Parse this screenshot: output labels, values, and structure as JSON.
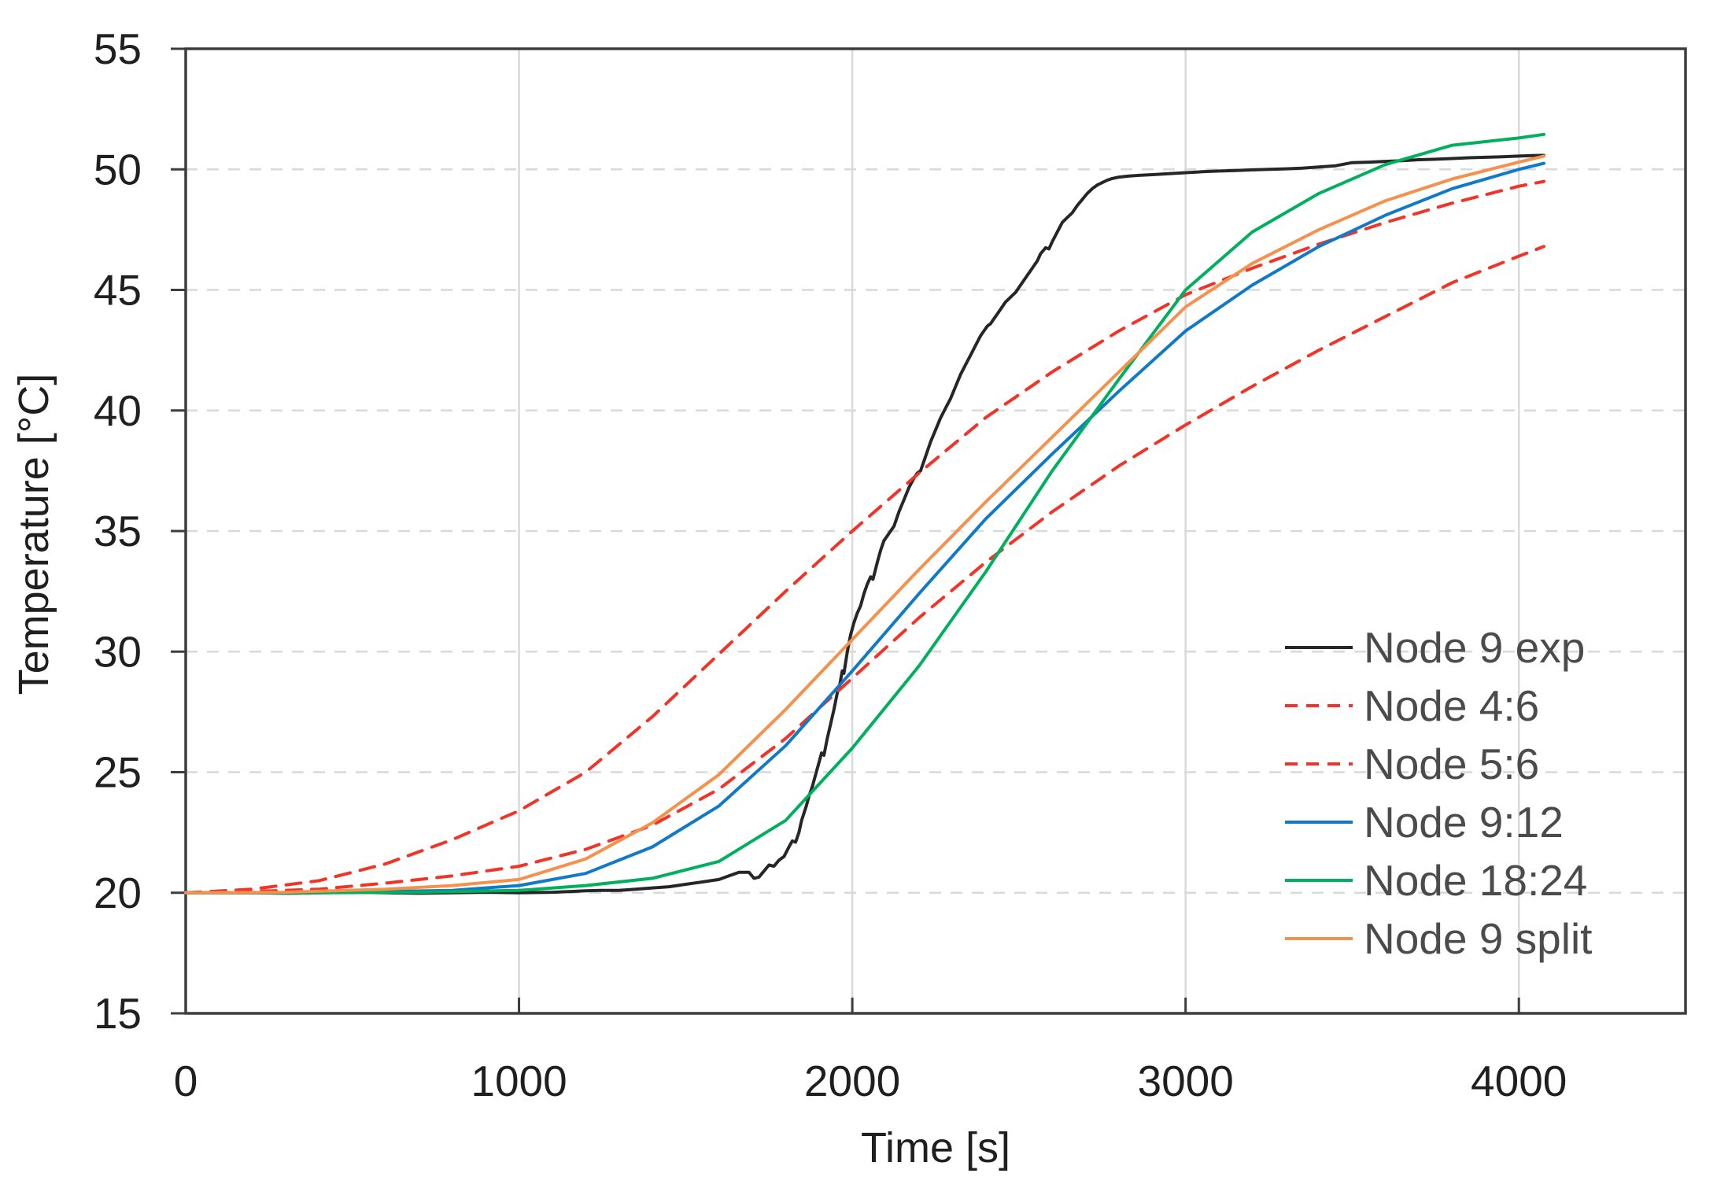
{
  "chart_data": {
    "type": "line",
    "title": "",
    "xlabel": "Time [s]",
    "ylabel": "Temperature [°C]",
    "xlim": [
      0,
      4500
    ],
    "ylim": [
      15,
      55
    ],
    "x_ticks": [
      0,
      1000,
      2000,
      3000,
      4000
    ],
    "y_ticks": [
      15,
      20,
      25,
      30,
      35,
      40,
      45,
      50,
      55
    ],
    "x_gridlines": [
      1000,
      2000,
      3000,
      4000
    ],
    "y_gridlines": [
      20,
      25,
      30,
      35,
      40,
      45,
      50
    ],
    "grid": "on",
    "legend_position": "inside-right",
    "legend_text_color": "#4B4B4B",
    "series": [
      {
        "name": "Node 9 exp",
        "color": "#262626",
        "style": "solid",
        "points": [
          [
            0,
            20
          ],
          [
            100,
            20
          ],
          [
            200,
            20
          ],
          [
            300,
            19.98
          ],
          [
            400,
            20
          ],
          [
            500,
            20.02
          ],
          [
            600,
            20
          ],
          [
            700,
            19.98
          ],
          [
            800,
            20
          ],
          [
            900,
            20.02
          ],
          [
            1000,
            20
          ],
          [
            1100,
            20.02
          ],
          [
            1150,
            20.05
          ],
          [
            1200,
            20.08
          ],
          [
            1250,
            20.1
          ],
          [
            1300,
            20.1
          ],
          [
            1350,
            20.15
          ],
          [
            1400,
            20.2
          ],
          [
            1450,
            20.25
          ],
          [
            1500,
            20.35
          ],
          [
            1550,
            20.45
          ],
          [
            1600,
            20.55
          ],
          [
            1630,
            20.7
          ],
          [
            1660,
            20.85
          ],
          [
            1690,
            20.85
          ],
          [
            1705,
            20.6
          ],
          [
            1720,
            20.65
          ],
          [
            1735,
            20.9
          ],
          [
            1750,
            21.15
          ],
          [
            1765,
            21.1
          ],
          [
            1780,
            21.35
          ],
          [
            1795,
            21.5
          ],
          [
            1810,
            21.9
          ],
          [
            1820,
            22.15
          ],
          [
            1830,
            22.1
          ],
          [
            1840,
            22.5
          ],
          [
            1848,
            23
          ],
          [
            1855,
            23.3
          ],
          [
            1862,
            23.6
          ],
          [
            1870,
            24
          ],
          [
            1880,
            24.4
          ],
          [
            1890,
            24.9
          ],
          [
            1900,
            25.4
          ],
          [
            1908,
            25.8
          ],
          [
            1915,
            25.7
          ],
          [
            1925,
            26.4
          ],
          [
            1935,
            27
          ],
          [
            1945,
            27.6
          ],
          [
            1955,
            28.3
          ],
          [
            1962,
            28.6
          ],
          [
            1970,
            29.2
          ],
          [
            1975,
            29.1
          ],
          [
            1985,
            30
          ],
          [
            1995,
            30.7
          ],
          [
            2005,
            31.2
          ],
          [
            2015,
            31.6
          ],
          [
            2025,
            31.9
          ],
          [
            2035,
            32.4
          ],
          [
            2045,
            32.8
          ],
          [
            2055,
            33.1
          ],
          [
            2062,
            33
          ],
          [
            2075,
            33.7
          ],
          [
            2085,
            34.2
          ],
          [
            2095,
            34.6
          ],
          [
            2105,
            34.8
          ],
          [
            2115,
            35
          ],
          [
            2125,
            35.2
          ],
          [
            2140,
            35.8
          ],
          [
            2155,
            36.3
          ],
          [
            2170,
            36.8
          ],
          [
            2185,
            37.2
          ],
          [
            2195,
            37.4
          ],
          [
            2205,
            37.5
          ],
          [
            2220,
            38.1
          ],
          [
            2235,
            38.7
          ],
          [
            2250,
            39.2
          ],
          [
            2265,
            39.7
          ],
          [
            2280,
            40.1
          ],
          [
            2295,
            40.5
          ],
          [
            2310,
            41
          ],
          [
            2325,
            41.5
          ],
          [
            2340,
            41.9
          ],
          [
            2355,
            42.3
          ],
          [
            2370,
            42.7
          ],
          [
            2385,
            43.1
          ],
          [
            2395,
            43.3
          ],
          [
            2405,
            43.5
          ],
          [
            2415,
            43.6
          ],
          [
            2425,
            43.8
          ],
          [
            2435,
            44
          ],
          [
            2445,
            44.2
          ],
          [
            2460,
            44.5
          ],
          [
            2475,
            44.7
          ],
          [
            2490,
            44.9
          ],
          [
            2500,
            45.1
          ],
          [
            2515,
            45.4
          ],
          [
            2530,
            45.7
          ],
          [
            2545,
            46
          ],
          [
            2555,
            46.2
          ],
          [
            2565,
            46.5
          ],
          [
            2580,
            46.75
          ],
          [
            2590,
            46.7
          ],
          [
            2600,
            47
          ],
          [
            2615,
            47.4
          ],
          [
            2630,
            47.8
          ],
          [
            2645,
            48
          ],
          [
            2660,
            48.2
          ],
          [
            2675,
            48.5
          ],
          [
            2690,
            48.75
          ],
          [
            2705,
            49
          ],
          [
            2720,
            49.2
          ],
          [
            2735,
            49.35
          ],
          [
            2750,
            49.45
          ],
          [
            2765,
            49.55
          ],
          [
            2780,
            49.62
          ],
          [
            2800,
            49.68
          ],
          [
            2830,
            49.72
          ],
          [
            2860,
            49.75
          ],
          [
            2900,
            49.78
          ],
          [
            2950,
            49.82
          ],
          [
            3000,
            49.86
          ],
          [
            3050,
            49.9
          ],
          [
            3100,
            49.93
          ],
          [
            3150,
            49.95
          ],
          [
            3200,
            49.98
          ],
          [
            3250,
            50
          ],
          [
            3300,
            50.02
          ],
          [
            3350,
            50.05
          ],
          [
            3400,
            50.1
          ],
          [
            3450,
            50.15
          ],
          [
            3500,
            50.28
          ],
          [
            3550,
            50.3
          ],
          [
            3600,
            50.33
          ],
          [
            3650,
            50.36
          ],
          [
            3700,
            50.4
          ],
          [
            3750,
            50.42
          ],
          [
            3800,
            50.45
          ],
          [
            3850,
            50.48
          ],
          [
            3900,
            50.5
          ],
          [
            3950,
            50.52
          ],
          [
            4000,
            50.55
          ],
          [
            4040,
            50.57
          ],
          [
            4075,
            50.58
          ]
        ]
      },
      {
        "name": "Node 4:6",
        "color": "#F23327",
        "style": "dashed",
        "points": [
          [
            0,
            20
          ],
          [
            200,
            20.15
          ],
          [
            400,
            20.5
          ],
          [
            600,
            21.2
          ],
          [
            800,
            22.2
          ],
          [
            1000,
            23.4
          ],
          [
            1200,
            25
          ],
          [
            1400,
            27.3
          ],
          [
            1600,
            29.9
          ],
          [
            1800,
            32.5
          ],
          [
            2000,
            35
          ],
          [
            2200,
            37.4
          ],
          [
            2400,
            39.7
          ],
          [
            2600,
            41.6
          ],
          [
            2800,
            43.3
          ],
          [
            3000,
            44.8
          ],
          [
            3200,
            45.9
          ],
          [
            3400,
            46.9
          ],
          [
            3600,
            47.8
          ],
          [
            3800,
            48.6
          ],
          [
            4000,
            49.3
          ],
          [
            4075,
            49.5
          ]
        ]
      },
      {
        "name": "Node 5:6",
        "color": "#F23327",
        "style": "dashed",
        "points": [
          [
            0,
            20
          ],
          [
            200,
            20.05
          ],
          [
            400,
            20.15
          ],
          [
            600,
            20.4
          ],
          [
            800,
            20.7
          ],
          [
            1000,
            21.1
          ],
          [
            1200,
            21.8
          ],
          [
            1400,
            22.8
          ],
          [
            1600,
            24.3
          ],
          [
            1800,
            26.4
          ],
          [
            2000,
            28.9
          ],
          [
            2200,
            31.4
          ],
          [
            2400,
            33.7
          ],
          [
            2600,
            35.8
          ],
          [
            2800,
            37.7
          ],
          [
            3000,
            39.4
          ],
          [
            3200,
            41
          ],
          [
            3400,
            42.5
          ],
          [
            3600,
            43.9
          ],
          [
            3800,
            45.3
          ],
          [
            4000,
            46.4
          ],
          [
            4075,
            46.8
          ]
        ]
      },
      {
        "name": "Node 9:12",
        "color": "#1079C8",
        "style": "solid",
        "points": [
          [
            0,
            20
          ],
          [
            300,
            20
          ],
          [
            600,
            20.05
          ],
          [
            800,
            20.1
          ],
          [
            1000,
            20.3
          ],
          [
            1200,
            20.8
          ],
          [
            1400,
            21.9
          ],
          [
            1600,
            23.6
          ],
          [
            1800,
            26.1
          ],
          [
            2000,
            29.2
          ],
          [
            2200,
            32.4
          ],
          [
            2400,
            35.5
          ],
          [
            2600,
            38.2
          ],
          [
            2800,
            40.8
          ],
          [
            3000,
            43.3
          ],
          [
            3200,
            45.2
          ],
          [
            3400,
            46.8
          ],
          [
            3600,
            48.1
          ],
          [
            3800,
            49.2
          ],
          [
            4000,
            50
          ],
          [
            4075,
            50.25
          ]
        ]
      },
      {
        "name": "Node 18:24",
        "color": "#00B05E",
        "style": "solid",
        "points": [
          [
            0,
            20
          ],
          [
            400,
            20
          ],
          [
            700,
            20.02
          ],
          [
            1000,
            20.1
          ],
          [
            1200,
            20.3
          ],
          [
            1400,
            20.6
          ],
          [
            1600,
            21.3
          ],
          [
            1800,
            23
          ],
          [
            2000,
            26
          ],
          [
            2200,
            29.4
          ],
          [
            2400,
            33.3
          ],
          [
            2600,
            37.5
          ],
          [
            2800,
            41.3
          ],
          [
            3000,
            45
          ],
          [
            3200,
            47.4
          ],
          [
            3400,
            49
          ],
          [
            3600,
            50.2
          ],
          [
            3800,
            51
          ],
          [
            4000,
            51.3
          ],
          [
            4075,
            51.45
          ]
        ]
      },
      {
        "name": "Node 9 split",
        "color": "#F6914D",
        "style": "solid",
        "points": [
          [
            0,
            20
          ],
          [
            300,
            20.02
          ],
          [
            600,
            20.15
          ],
          [
            800,
            20.3
          ],
          [
            1000,
            20.55
          ],
          [
            1200,
            21.4
          ],
          [
            1400,
            22.9
          ],
          [
            1600,
            24.9
          ],
          [
            1800,
            27.6
          ],
          [
            2000,
            30.5
          ],
          [
            2200,
            33.4
          ],
          [
            2400,
            36.2
          ],
          [
            2600,
            38.9
          ],
          [
            2800,
            41.6
          ],
          [
            3000,
            44.3
          ],
          [
            3200,
            46.1
          ],
          [
            3400,
            47.5
          ],
          [
            3600,
            48.7
          ],
          [
            3800,
            49.6
          ],
          [
            4000,
            50.3
          ],
          [
            4075,
            50.55
          ]
        ]
      }
    ]
  }
}
